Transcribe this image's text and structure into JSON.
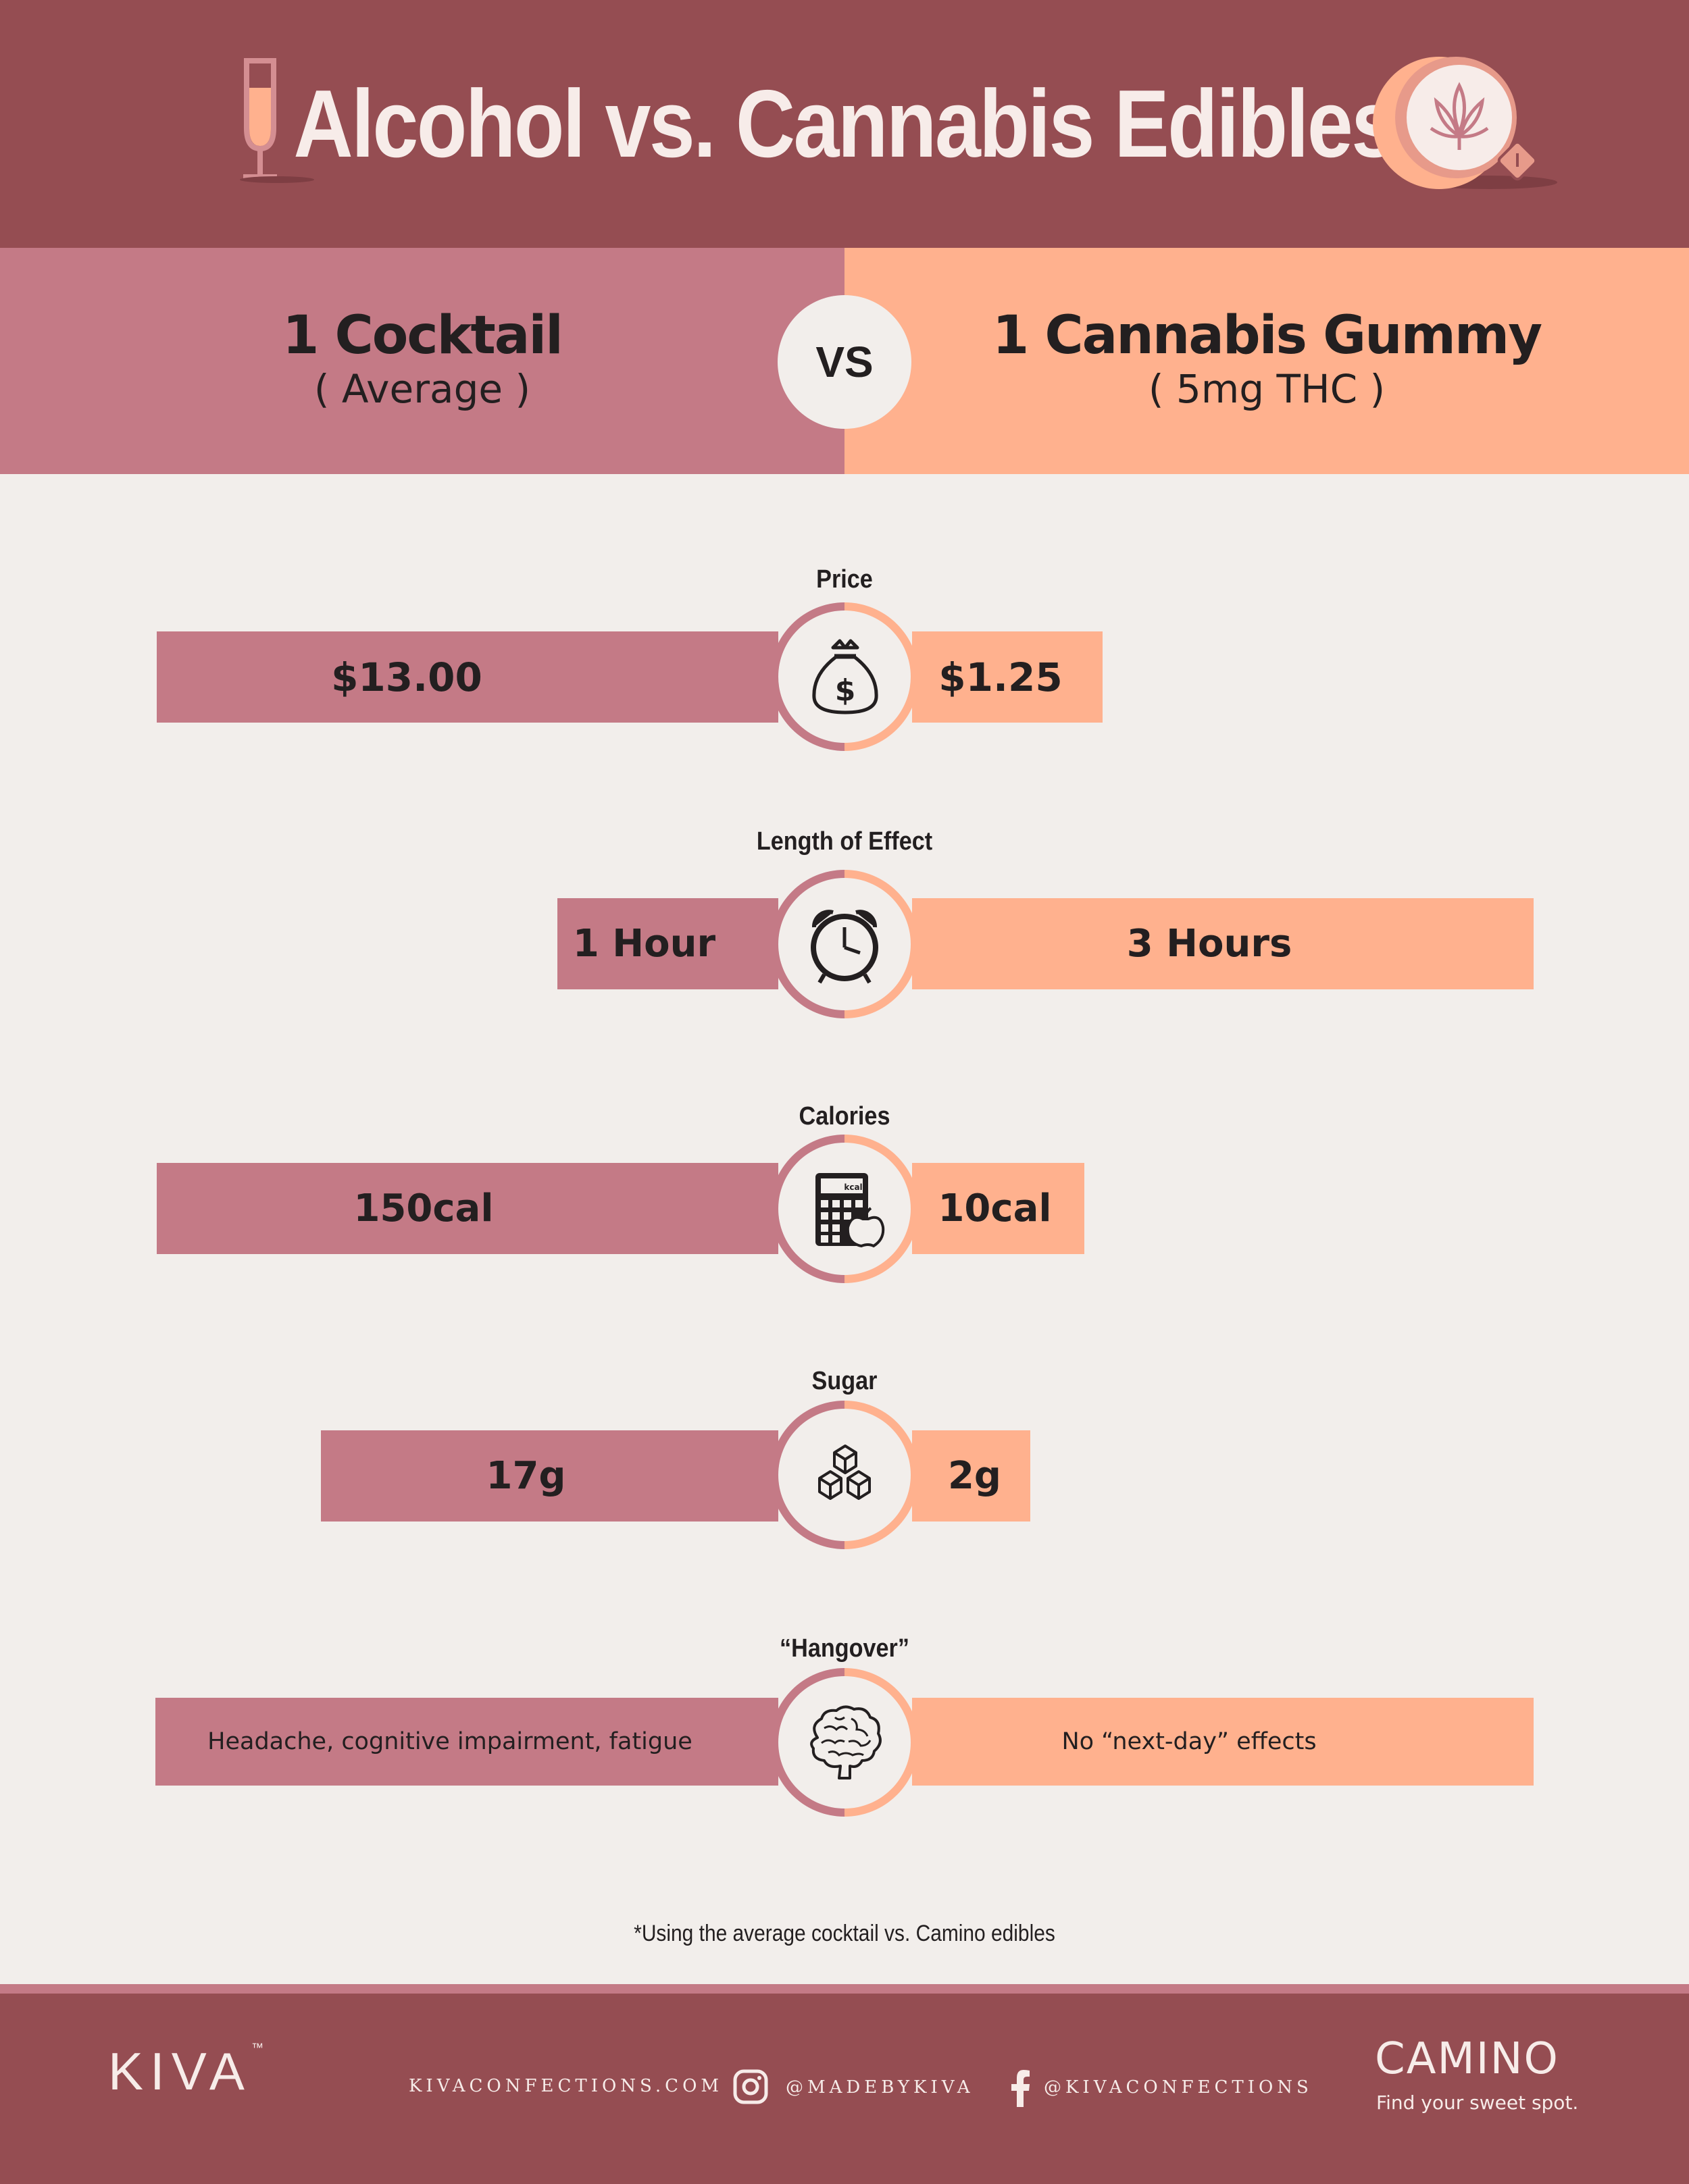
{
  "title": "Alcohol vs. Cannabis Edibles",
  "left": {
    "title": "1 Cocktail",
    "subtitle": "( Average )"
  },
  "vs": "VS",
  "right": {
    "title": "1 Cannabis Gummy",
    "subtitle": "( 5mg THC )"
  },
  "rows": [
    {
      "label": "Price",
      "left": "$13.00",
      "right": "$1.25",
      "icon": "money-bag-icon"
    },
    {
      "label": "Length of Effect",
      "left": "1 Hour",
      "right": "3 Hours",
      "icon": "alarm-clock-icon"
    },
    {
      "label": "Calories",
      "left": "150cal",
      "right": "10cal",
      "icon": "calculator-apple-icon",
      "icon_text": "kcal"
    },
    {
      "label": "Sugar",
      "left": "17g",
      "right": "2g",
      "icon": "sugar-cubes-icon"
    },
    {
      "label": "“Hangover”",
      "left": "Headache, cognitive impairment, fatigue",
      "right": "No “next-day” effects",
      "icon": "brain-icon"
    }
  ],
  "footnote": "*Using the average cocktail vs. Camino edibles",
  "footer": {
    "brand": "KIVA",
    "tm": "™",
    "website": "KIVACONFECTIONS.COM",
    "instagram": "@MADEBYKIVA",
    "facebook": "@KIVACONFECTIONS",
    "camino": "CAMINO",
    "tagline": "Find your sweet spot."
  },
  "colors": {
    "header": "#954d52",
    "alcohol": "#c47a86",
    "cannabis": "#ffb18e",
    "background": "#f2eeeb",
    "text": "#231f20"
  }
}
